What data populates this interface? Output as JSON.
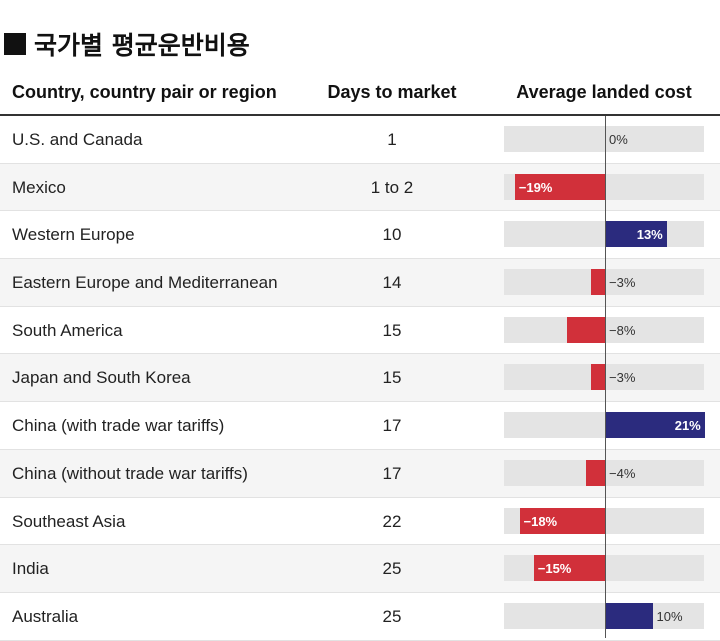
{
  "title": "국가별 평균운반비용",
  "headers": {
    "country": "Country, country pair or region",
    "days": "Days to market",
    "cost": "Average landed cost"
  },
  "colors": {
    "negative": "#d1303a",
    "positive": "#2b2b7e",
    "track": "#e4e4e4"
  },
  "chart_data": {
    "type": "table",
    "title": "국가별 평균운반비용",
    "columns": [
      "Country, country pair or region",
      "Days to market",
      "Average landed cost"
    ],
    "unit": "%",
    "range": [
      -20,
      20
    ],
    "rows": [
      {
        "country": "U.S. and Canada",
        "days": "1",
        "cost": 0,
        "label": "0%"
      },
      {
        "country": "Mexico",
        "days": "1 to 2",
        "cost": -19,
        "label": "−19%"
      },
      {
        "country": "Western Europe",
        "days": "10",
        "cost": 13,
        "label": "13%"
      },
      {
        "country": "Eastern Europe and Mediterranean",
        "days": "14",
        "cost": -3,
        "label": "−3%"
      },
      {
        "country": "South America",
        "days": "15",
        "cost": -8,
        "label": "−8%"
      },
      {
        "country": "Japan and South Korea",
        "days": "15",
        "cost": -3,
        "label": "−3%"
      },
      {
        "country": "China (with trade war tariffs)",
        "days": "17",
        "cost": 21,
        "label": "21%"
      },
      {
        "country": "China (without trade war tariffs)",
        "days": "17",
        "cost": -4,
        "label": "−4%"
      },
      {
        "country": "Southeast Asia",
        "days": "22",
        "cost": -18,
        "label": "−18%"
      },
      {
        "country": "India",
        "days": "25",
        "cost": -15,
        "label": "−15%"
      },
      {
        "country": "Australia",
        "days": "25",
        "cost": 10,
        "label": "10%"
      }
    ]
  }
}
